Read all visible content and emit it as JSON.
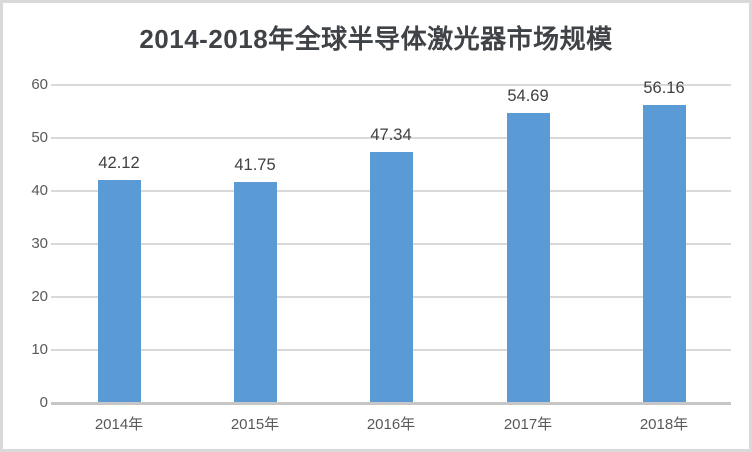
{
  "window": {
    "background": "#ffffff",
    "border_color": "#d9d9d9"
  },
  "chart_data": {
    "type": "bar",
    "title": "2014-2018年全球半导体激光器市场规模",
    "categories": [
      "2014年",
      "2015年",
      "2016年",
      "2017年",
      "2018年"
    ],
    "values": [
      42.12,
      41.75,
      47.34,
      54.69,
      56.16
    ],
    "data_labels": [
      "42.12",
      "41.75",
      "47.34",
      "54.69",
      "56.16"
    ],
    "xlabel": "",
    "ylabel": "",
    "ylim": [
      0,
      60
    ],
    "y_ticks": [
      0,
      10,
      20,
      30,
      40,
      50,
      60
    ],
    "grid": true,
    "legend_position": "none",
    "bar_color": "#5b9bd5",
    "gridline_color": "#d9d9d9",
    "axis_line_color": "#c6c6c6",
    "title_color": "#3f4347",
    "tick_label_color": "#595959",
    "data_label_color": "#404040"
  }
}
